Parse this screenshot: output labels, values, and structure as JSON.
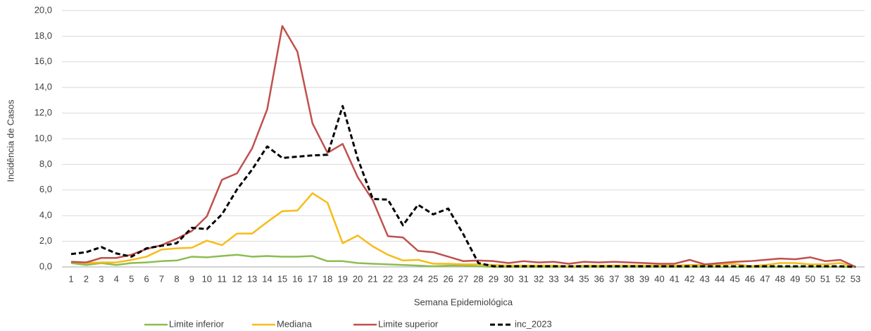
{
  "chart_data": {
    "type": "line",
    "y_label": "Incidência de Casos",
    "x_label": "Semana  Epidemiológica",
    "categories": [
      "1",
      "2",
      "3",
      "4",
      "5",
      "6",
      "7",
      "8",
      "9",
      "10",
      "11",
      "12",
      "13",
      "14",
      "15",
      "16",
      "17",
      "18",
      "19",
      "20",
      "21",
      "22",
      "23",
      "24",
      "25",
      "26",
      "27",
      "28",
      "29",
      "30",
      "31",
      "32",
      "33",
      "34",
      "35",
      "36",
      "37",
      "38",
      "39",
      "40",
      "41",
      "42",
      "43",
      "44",
      "45",
      "46",
      "47",
      "48",
      "49",
      "50",
      "51",
      "52",
      "53"
    ],
    "ylim": [
      0,
      20
    ],
    "yticks": [
      {
        "value": 0,
        "label": "0,0"
      },
      {
        "value": 2,
        "label": "2,0"
      },
      {
        "value": 4,
        "label": "4,0"
      },
      {
        "value": 6,
        "label": "6,0"
      },
      {
        "value": 8,
        "label": "8,0"
      },
      {
        "value": 10,
        "label": "10,0"
      },
      {
        "value": 12,
        "label": "12,0"
      },
      {
        "value": 14,
        "label": "14,0"
      },
      {
        "value": 16,
        "label": "16,0"
      },
      {
        "value": 18,
        "label": "18,0"
      },
      {
        "value": 20,
        "label": "20,0"
      }
    ],
    "grid": true,
    "legend": "bottom",
    "series": [
      {
        "name": "Limite inferior",
        "color": "#8cbd4f",
        "values": [
          0.3,
          0.15,
          0.3,
          0.15,
          0.3,
          0.35,
          0.45,
          0.5,
          0.8,
          0.75,
          0.85,
          0.95,
          0.8,
          0.85,
          0.8,
          0.8,
          0.85,
          0.45,
          0.45,
          0.3,
          0.25,
          0.2,
          0.15,
          0.1,
          0.05,
          0.1,
          0.1,
          0.05,
          0,
          0,
          0,
          0,
          0,
          0,
          0,
          0,
          0,
          0,
          0,
          0,
          0,
          0,
          0,
          0,
          0,
          0,
          0,
          0,
          0,
          0,
          0,
          0,
          0
        ]
      },
      {
        "name": "Mediana",
        "color": "#f8bb18",
        "values": [
          0.4,
          0.3,
          0.35,
          0.35,
          0.55,
          0.8,
          1.35,
          1.45,
          1.5,
          2.05,
          1.7,
          2.6,
          2.6,
          3.5,
          4.35,
          4.4,
          5.75,
          5.0,
          1.85,
          2.45,
          1.6,
          0.95,
          0.5,
          0.55,
          0.25,
          0.25,
          0.2,
          0.2,
          0.15,
          0.1,
          0.1,
          0.1,
          0.1,
          0.05,
          0.1,
          0.1,
          0.1,
          0.1,
          0.1,
          0.1,
          0.1,
          0.15,
          0.15,
          0.2,
          0.25,
          0.05,
          0.15,
          0.3,
          0.3,
          0.2,
          0.2,
          0.3,
          0
        ]
      },
      {
        "name": "Limite superior",
        "color": "#c0504d",
        "values": [
          0.4,
          0.35,
          0.7,
          0.7,
          0.95,
          1.4,
          1.7,
          2.2,
          2.8,
          3.95,
          6.8,
          7.3,
          9.25,
          12.3,
          18.8,
          16.8,
          11.2,
          8.9,
          9.6,
          7.0,
          5.2,
          2.4,
          2.3,
          1.25,
          1.15,
          0.8,
          0.45,
          0.5,
          0.45,
          0.3,
          0.45,
          0.35,
          0.4,
          0.25,
          0.4,
          0.35,
          0.4,
          0.35,
          0.3,
          0.25,
          0.25,
          0.55,
          0.2,
          0.3,
          0.4,
          0.45,
          0.55,
          0.65,
          0.6,
          0.75,
          0.45,
          0.55,
          0
        ]
      },
      {
        "name": "inc_2023",
        "color": "#000000",
        "dashed": true,
        "values": [
          1.0,
          1.15,
          1.55,
          1.05,
          0.8,
          1.45,
          1.65,
          1.85,
          3.05,
          2.95,
          4.1,
          6.05,
          7.6,
          9.4,
          8.5,
          8.6,
          8.7,
          8.75,
          12.55,
          8.45,
          5.3,
          5.25,
          3.25,
          4.85,
          4.1,
          4.55,
          2.55,
          0.3,
          0.05,
          0.05,
          0.05,
          0.05,
          0.05,
          0.05,
          0.05,
          0.05,
          0.05,
          0.05,
          0.05,
          0.05,
          0.05,
          0.05,
          0.05,
          0.05,
          0.05,
          0.05,
          0.05,
          0.05,
          0.05,
          0.05,
          0.05,
          0.05,
          0
        ]
      }
    ]
  }
}
